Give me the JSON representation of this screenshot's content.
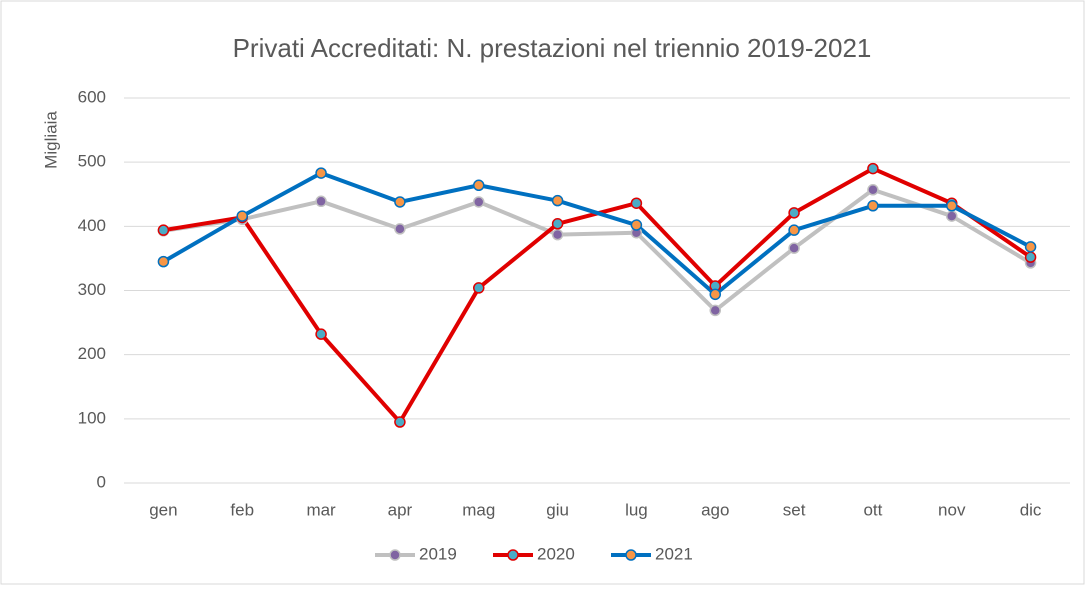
{
  "chart_data": {
    "type": "line",
    "title": "Privati Accreditati: N. prestazioni nel triennio 2019-2021",
    "y_label": "Migliaia",
    "categories": [
      "gen",
      "feb",
      "mar",
      "apr",
      "mag",
      "giu",
      "lug",
      "ago",
      "set",
      "ott",
      "nov",
      "dic"
    ],
    "series": [
      {
        "name": "2019",
        "color": "#c0c0c0",
        "marker_color": "#8064a2",
        "values": [
          393,
          411,
          439,
          396,
          438,
          387,
          390,
          269,
          366,
          457,
          416,
          343
        ]
      },
      {
        "name": "2020",
        "color": "#e00000",
        "marker_color": "#4bacc6",
        "values": [
          394,
          414,
          232,
          95,
          304,
          404,
          436,
          307,
          421,
          490,
          436,
          352
        ]
      },
      {
        "name": "2021",
        "color": "#0070c0",
        "marker_color": "#f79646",
        "values": [
          345,
          416,
          483,
          438,
          464,
          440,
          402,
          294,
          394,
          432,
          432,
          368
        ]
      }
    ],
    "ylim": [
      0,
      600
    ],
    "yticks": [
      0,
      100,
      200,
      300,
      400,
      500,
      600
    ],
    "grid": true,
    "legend": "bottom"
  }
}
